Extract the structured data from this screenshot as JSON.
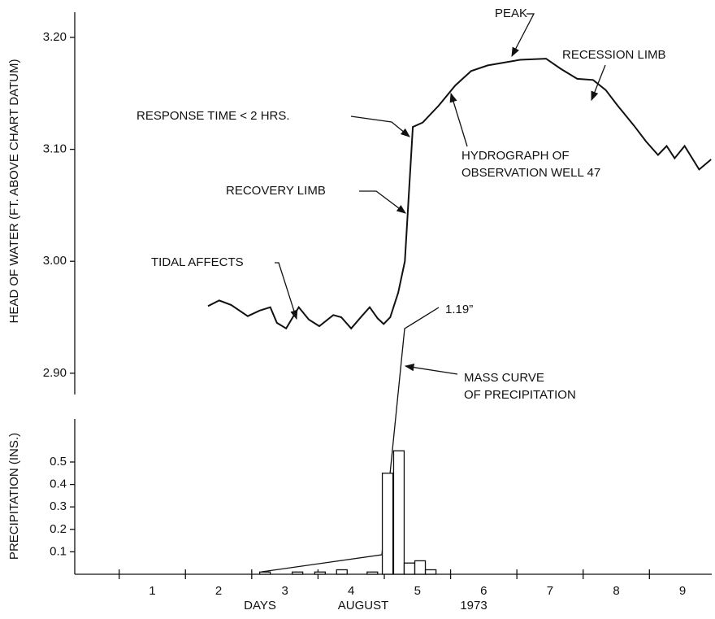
{
  "chart_data": [
    {
      "type": "line",
      "ylabel": "HEAD OF WATER (FT. ABOVE CHART DATUM)",
      "xlim": [
        0.33,
        9.94
      ],
      "ylim": [
        2.881,
        3.2225
      ],
      "yticks": [
        {
          "value": 3.2,
          "label": "3.20"
        },
        {
          "value": 3.1,
          "label": "3.10"
        },
        {
          "value": 3.0,
          "label": "3.00"
        },
        {
          "value": 2.9,
          "label": "2.90"
        }
      ],
      "series": [
        {
          "color": "#111111",
          "x": [
            2.34,
            2.51,
            2.69,
            2.94,
            3.12,
            3.28,
            3.38,
            3.52,
            3.71,
            3.86,
            4.02,
            4.23,
            4.35,
            4.5,
            4.66,
            4.78,
            4.9,
            4.99,
            5.09,
            5.21,
            5.31,
            5.43,
            5.58,
            5.82,
            6.07,
            6.31,
            6.56,
            7.05,
            7.44,
            7.66,
            7.91,
            8.15,
            8.34,
            8.52,
            8.77,
            8.95,
            9.13,
            9.26,
            9.38,
            9.53,
            9.75,
            9.93
          ],
          "values": [
            2.96,
            2.965,
            2.961,
            2.951,
            2.956,
            2.959,
            2.945,
            2.94,
            2.959,
            2.948,
            2.942,
            2.952,
            2.95,
            2.94,
            2.951,
            2.959,
            2.949,
            2.944,
            2.95,
            2.972,
            3.0,
            3.12,
            3.124,
            3.139,
            3.157,
            3.17,
            3.175,
            3.18,
            3.181,
            3.172,
            3.163,
            3.162,
            3.153,
            3.139,
            3.121,
            3.107,
            3.095,
            3.103,
            3.092,
            3.103,
            3.082,
            3.091
          ]
        }
      ],
      "annotations": {
        "peak": "PEAK",
        "recession_limb": "RECESSION LIMB",
        "response_time": "RESPONSE TIME  < 2 HRS.",
        "hydrograph": [
          "HYDROGRAPH OF",
          "OBSERVATION WELL 47"
        ],
        "recovery_limb": "RECOVERY LIMB",
        "tidal_affects": "TIDAL AFFECTS",
        "total": "1.19”",
        "mass_curve": [
          "MASS CURVE",
          "OF PRECIPITATION"
        ]
      }
    },
    {
      "type": "bar",
      "ylabel": "PRECIPITATION (INS.)",
      "xlim": [
        0.33,
        9.94
      ],
      "ylim": [
        0,
        0.692
      ],
      "yticks": [
        0.1,
        0.2,
        0.3,
        0.4,
        0.5
      ],
      "xminorticks": [
        1,
        2,
        3,
        4,
        5,
        6,
        7,
        8,
        9
      ],
      "xticks": [
        {
          "value": 1.5,
          "label": "1"
        },
        {
          "value": 2.5,
          "label": "2"
        },
        {
          "value": 3.5,
          "label": "3"
        },
        {
          "value": 4.5,
          "label": "4"
        },
        {
          "value": 5.5,
          "label": "5"
        },
        {
          "value": 6.5,
          "label": "6"
        },
        {
          "value": 7.5,
          "label": "7"
        },
        {
          "value": 8.5,
          "label": "8"
        },
        {
          "value": 9.5,
          "label": "9"
        }
      ],
      "xlabels": [
        "DAYS",
        "AUGUST",
        "1973"
      ],
      "color": "#111111",
      "x": [
        3.2,
        3.69,
        4.03,
        4.36,
        4.82,
        5.05,
        5.22,
        5.38,
        5.54,
        5.7
      ],
      "values": [
        0.01,
        0.01,
        0.01,
        0.02,
        0.01,
        0.45,
        0.55,
        0.05,
        0.06,
        0.02
      ]
    }
  ]
}
